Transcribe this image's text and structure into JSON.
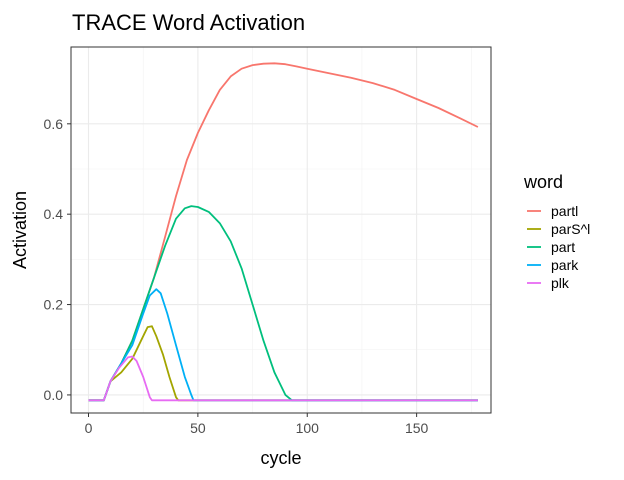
{
  "chart_data": {
    "type": "line",
    "title": "TRACE Word Activation",
    "xlabel": "cycle",
    "ylabel": "Activation",
    "xlim": [
      -8,
      184
    ],
    "ylim": [
      -0.04,
      0.77
    ],
    "xticks": [
      0,
      50,
      100,
      150
    ],
    "yticks": [
      0.0,
      0.2,
      0.4,
      0.6
    ],
    "xtick_labels": [
      "0",
      "50",
      "100",
      "150"
    ],
    "ytick_labels": [
      "0.0",
      "0.2",
      "0.4",
      "0.6"
    ],
    "grid": true,
    "legend": {
      "title": "word",
      "placement": "right"
    },
    "series": [
      {
        "name": "partl",
        "color": "#F8766D",
        "points": [
          [
            0,
            -0.012
          ],
          [
            7,
            -0.012
          ],
          [
            10,
            0.03
          ],
          [
            15,
            0.07
          ],
          [
            20,
            0.12
          ],
          [
            25,
            0.19
          ],
          [
            30,
            0.26
          ],
          [
            35,
            0.35
          ],
          [
            40,
            0.44
          ],
          [
            45,
            0.52
          ],
          [
            50,
            0.58
          ],
          [
            55,
            0.63
          ],
          [
            60,
            0.675
          ],
          [
            65,
            0.705
          ],
          [
            70,
            0.722
          ],
          [
            75,
            0.73
          ],
          [
            80,
            0.733
          ],
          [
            85,
            0.734
          ],
          [
            90,
            0.732
          ],
          [
            95,
            0.727
          ],
          [
            100,
            0.722
          ],
          [
            110,
            0.712
          ],
          [
            120,
            0.702
          ],
          [
            130,
            0.69
          ],
          [
            140,
            0.675
          ],
          [
            150,
            0.655
          ],
          [
            160,
            0.635
          ],
          [
            170,
            0.612
          ],
          [
            178,
            0.593
          ]
        ]
      },
      {
        "name": "parS^l",
        "color": "#A3A500",
        "points": [
          [
            0,
            -0.012
          ],
          [
            7,
            -0.012
          ],
          [
            10,
            0.03
          ],
          [
            15,
            0.05
          ],
          [
            20,
            0.08
          ],
          [
            24,
            0.12
          ],
          [
            27,
            0.15
          ],
          [
            29,
            0.152
          ],
          [
            31,
            0.13
          ],
          [
            34,
            0.09
          ],
          [
            37,
            0.04
          ],
          [
            40,
            -0.005
          ],
          [
            41,
            -0.012
          ],
          [
            178,
            -0.012
          ]
        ]
      },
      {
        "name": "part",
        "color": "#00BF7D",
        "points": [
          [
            0,
            -0.012
          ],
          [
            7,
            -0.012
          ],
          [
            10,
            0.03
          ],
          [
            15,
            0.07
          ],
          [
            20,
            0.12
          ],
          [
            25,
            0.19
          ],
          [
            30,
            0.26
          ],
          [
            35,
            0.33
          ],
          [
            40,
            0.39
          ],
          [
            44,
            0.413
          ],
          [
            47,
            0.418
          ],
          [
            50,
            0.416
          ],
          [
            55,
            0.405
          ],
          [
            60,
            0.38
          ],
          [
            65,
            0.34
          ],
          [
            70,
            0.28
          ],
          [
            75,
            0.2
          ],
          [
            80,
            0.12
          ],
          [
            85,
            0.05
          ],
          [
            90,
            0.0
          ],
          [
            93,
            -0.012
          ],
          [
            178,
            -0.012
          ]
        ]
      },
      {
        "name": "park",
        "color": "#00B0F6",
        "points": [
          [
            0,
            -0.012
          ],
          [
            7,
            -0.012
          ],
          [
            10,
            0.03
          ],
          [
            15,
            0.07
          ],
          [
            20,
            0.11
          ],
          [
            25,
            0.18
          ],
          [
            28,
            0.22
          ],
          [
            31,
            0.234
          ],
          [
            33,
            0.225
          ],
          [
            36,
            0.18
          ],
          [
            40,
            0.11
          ],
          [
            44,
            0.04
          ],
          [
            47,
            0.0
          ],
          [
            48,
            -0.012
          ],
          [
            178,
            -0.012
          ]
        ]
      },
      {
        "name": "plk",
        "color": "#E76BF3",
        "points": [
          [
            0,
            -0.012
          ],
          [
            7,
            -0.012
          ],
          [
            10,
            0.03
          ],
          [
            14,
            0.06
          ],
          [
            18,
            0.083
          ],
          [
            20,
            0.085
          ],
          [
            22,
            0.075
          ],
          [
            25,
            0.04
          ],
          [
            28,
            -0.005
          ],
          [
            29,
            -0.012
          ],
          [
            178,
            -0.012
          ]
        ]
      }
    ]
  }
}
